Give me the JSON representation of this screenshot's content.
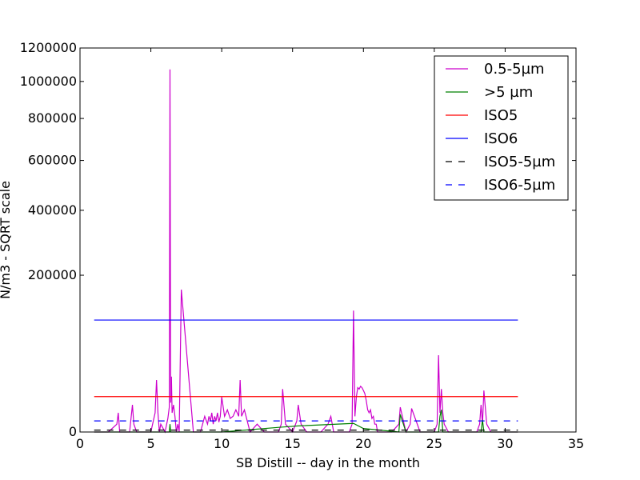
{
  "chart_data": {
    "type": "line",
    "xlabel": "SB Distill -- day in the month",
    "ylabel": "N/m3 - SQRT scale",
    "xlim": [
      0,
      35
    ],
    "ylim": [
      0,
      1200000
    ],
    "y_scale": "sqrt",
    "grid": false,
    "legend_position": "top-right",
    "x_ticks": [
      0,
      5,
      10,
      15,
      20,
      25,
      30,
      35
    ],
    "x_tick_labels": [
      "0",
      "5",
      "10",
      "15",
      "20",
      "25",
      "30",
      "35"
    ],
    "y_ticks": [
      0,
      200000,
      400000,
      600000,
      800000,
      1000000,
      1200000
    ],
    "y_tick_labels": [
      "0",
      "200000",
      "400000",
      "600000",
      "800000",
      "1000000",
      "1200000"
    ],
    "series": [
      {
        "name": "0.5-5µm",
        "color": "#cc00cc",
        "dash": "solid",
        "x": [
          1.0,
          2.0,
          2.6,
          2.7,
          2.8,
          3.5,
          3.7,
          3.8,
          4.0,
          5.0,
          5.3,
          5.4,
          5.5,
          5.6,
          5.7,
          6.0,
          6.2,
          6.3,
          6.35,
          6.4,
          6.45,
          6.5,
          6.6,
          6.7,
          6.8,
          6.9,
          7.0,
          7.15,
          8.0,
          8.5,
          8.8,
          9.0,
          9.1,
          9.2,
          9.3,
          9.4,
          9.5,
          9.6,
          9.7,
          9.8,
          9.9,
          10.0,
          10.2,
          10.4,
          10.6,
          10.8,
          11.0,
          11.2,
          11.3,
          11.4,
          11.6,
          12.0,
          12.5,
          13.0,
          14.0,
          14.2,
          14.3,
          14.5,
          15.0,
          15.3,
          15.4,
          15.6,
          16.0,
          17.0,
          17.5,
          17.7,
          17.9,
          18.5,
          19.0,
          19.2,
          19.3,
          19.4,
          19.5,
          19.6,
          19.7,
          19.8,
          19.9,
          20.0,
          20.1,
          20.2,
          20.3,
          20.4,
          20.5,
          20.6,
          20.7,
          20.8,
          20.9,
          21.0,
          21.5,
          22.0,
          22.5,
          22.6,
          23.0,
          23.3,
          23.4,
          24.0,
          24.5,
          25.0,
          25.2,
          25.3,
          25.4,
          25.5,
          25.6,
          25.7,
          26.0,
          27.0,
          28.0,
          28.2,
          28.3,
          28.4,
          28.5,
          28.7,
          29.0,
          30.0,
          30.9
        ],
        "values": [
          0,
          0,
          500,
          3000,
          0,
          0,
          6000,
          500,
          0,
          0,
          3000,
          22000,
          3000,
          0,
          500,
          0,
          1500,
          5000,
          1070000,
          7000,
          25000,
          3000,
          6000,
          2000,
          0,
          500,
          0,
          165000,
          0,
          0,
          2000,
          500,
          2000,
          1000,
          3000,
          500,
          2000,
          1000,
          3000,
          800,
          2000,
          10000,
          2000,
          4000,
          1500,
          2000,
          4000,
          2000,
          22000,
          2000,
          4000,
          0,
          500,
          0,
          0,
          500,
          15000,
          500,
          0,
          1000,
          6000,
          500,
          0,
          0,
          500,
          2000,
          0,
          0,
          0,
          500,
          120000,
          2000,
          10000,
          16000,
          15000,
          17000,
          16000,
          14000,
          12000,
          8000,
          4000,
          3000,
          4000,
          1500,
          2000,
          500,
          500,
          0,
          0,
          0,
          500,
          5000,
          0,
          500,
          4500,
          0,
          0,
          0,
          500,
          48000,
          3000,
          15000,
          3000,
          500,
          0,
          0,
          0,
          500,
          6000,
          500,
          14000,
          500,
          0,
          0,
          0
        ]
      },
      {
        "name": ">5 µm",
        "color": "#008000",
        "dash": "solid",
        "x": [
          1.0,
          5.0,
          6.3,
          6.35,
          6.4,
          7.0,
          10.0,
          14.3,
          15.4,
          19.3,
          20.0,
          22.5,
          22.6,
          23.0,
          25.3,
          25.4,
          25.5,
          25.6,
          26.0,
          28.3,
          28.4,
          28.5,
          30.9
        ],
        "values": [
          0,
          0,
          0,
          500,
          0,
          0,
          0,
          200,
          300,
          600,
          100,
          0,
          2500,
          0,
          0,
          2000,
          4000,
          0,
          0,
          0,
          1200,
          0,
          0
        ]
      },
      {
        "name": "ISO5",
        "color": "#ff0000",
        "dash": "solid",
        "x": [
          1.0,
          30.9
        ],
        "values": [
          10200,
          10200
        ]
      },
      {
        "name": "ISO6",
        "color": "#0000ff",
        "dash": "solid",
        "x": [
          1.0,
          30.9
        ],
        "values": [
          102000,
          102000
        ]
      },
      {
        "name": "ISO5-5µm",
        "color": "#000000",
        "dash": "dashed",
        "x": [
          1.0,
          30.9
        ],
        "values": [
          29,
          29
        ]
      },
      {
        "name": "ISO6-5µm",
        "color": "#0000ff",
        "dash": "dashed",
        "x": [
          1.0,
          30.9
        ],
        "values": [
          1000,
          1000
        ]
      }
    ]
  }
}
